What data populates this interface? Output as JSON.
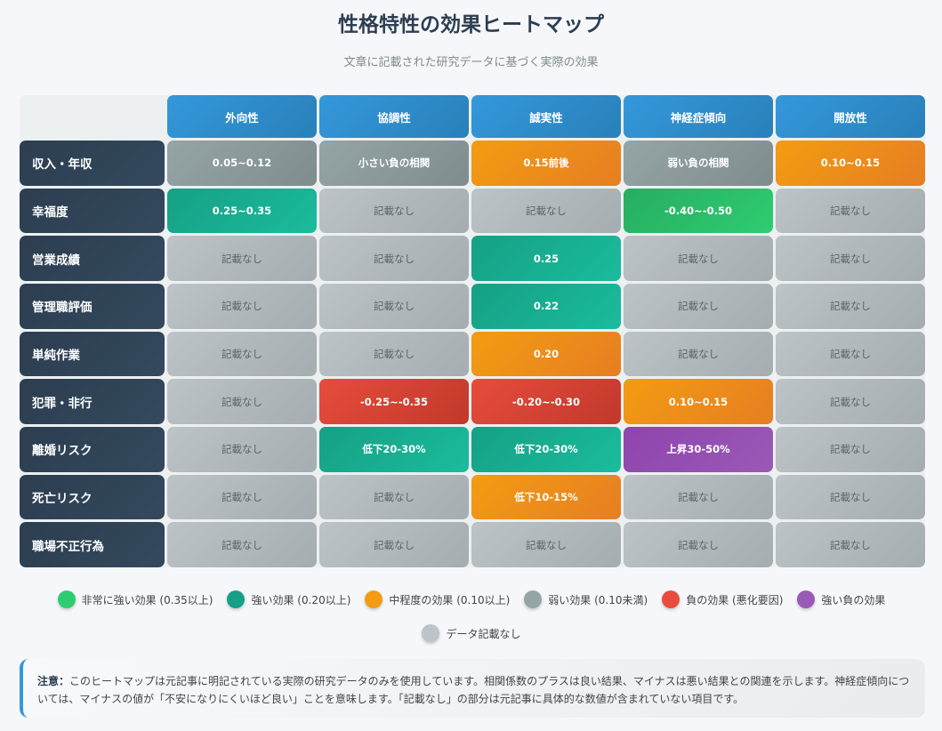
{
  "title": "性格特性の効果ヒートマップ",
  "subtitle": "文章に記載された研究データに基づく実際の効果",
  "columns": [
    "外向性",
    "協調性",
    "誠実性",
    "神経症傾向",
    "開放性"
  ],
  "rows": [
    {
      "label": "収入・年収",
      "cells": [
        [
          "0.05~0.12",
          "weak"
        ],
        [
          "小さい負の相関",
          "weak"
        ],
        [
          "0.15前後",
          "mid"
        ],
        [
          "弱い負の相関",
          "weak"
        ],
        [
          "0.10~0.15",
          "mid"
        ]
      ]
    },
    {
      "label": "幸福度",
      "cells": [
        [
          "0.25~0.35",
          "strong"
        ],
        [
          "記載なし",
          "none"
        ],
        [
          "記載なし",
          "none"
        ],
        [
          "-0.40~-0.50",
          "vstrong"
        ],
        [
          "記載なし",
          "none"
        ]
      ]
    },
    {
      "label": "営業成績",
      "cells": [
        [
          "記載なし",
          "none"
        ],
        [
          "記載なし",
          "none"
        ],
        [
          "0.25",
          "strong"
        ],
        [
          "記載なし",
          "none"
        ],
        [
          "記載なし",
          "none"
        ]
      ]
    },
    {
      "label": "管理職評価",
      "cells": [
        [
          "記載なし",
          "none"
        ],
        [
          "記載なし",
          "none"
        ],
        [
          "0.22",
          "strong"
        ],
        [
          "記載なし",
          "none"
        ],
        [
          "記載なし",
          "none"
        ]
      ]
    },
    {
      "label": "単純作業",
      "cells": [
        [
          "記載なし",
          "none"
        ],
        [
          "記載なし",
          "none"
        ],
        [
          "0.20",
          "mid"
        ],
        [
          "記載なし",
          "none"
        ],
        [
          "記載なし",
          "none"
        ]
      ]
    },
    {
      "label": "犯罪・非行",
      "cells": [
        [
          "記載なし",
          "none"
        ],
        [
          "-0.25~-0.35",
          "neg"
        ],
        [
          "-0.20~-0.30",
          "neg"
        ],
        [
          "0.10~0.15",
          "mid"
        ],
        [
          "記載なし",
          "none"
        ]
      ]
    },
    {
      "label": "離婚リスク",
      "cells": [
        [
          "記載なし",
          "none"
        ],
        [
          "低下20-30%",
          "strong"
        ],
        [
          "低下20-30%",
          "strong"
        ],
        [
          "上昇30-50%",
          "sneg"
        ],
        [
          "記載なし",
          "none"
        ]
      ]
    },
    {
      "label": "死亡リスク",
      "cells": [
        [
          "記載なし",
          "none"
        ],
        [
          "記載なし",
          "none"
        ],
        [
          "低下10-15%",
          "mid"
        ],
        [
          "記載なし",
          "none"
        ],
        [
          "記載なし",
          "none"
        ]
      ]
    },
    {
      "label": "職場不正行為",
      "cells": [
        [
          "記載なし",
          "none"
        ],
        [
          "記載なし",
          "none"
        ],
        [
          "記載なし",
          "none"
        ],
        [
          "記載なし",
          "none"
        ],
        [
          "記載なし",
          "none"
        ]
      ]
    }
  ],
  "legend": [
    {
      "label": "非常に強い効果 (0.35以上)",
      "color": "#2ecc71"
    },
    {
      "label": "強い効果 (0.20以上)",
      "color": "#16a085"
    },
    {
      "label": "中程度の効果 (0.10以上)",
      "color": "#f39c12"
    },
    {
      "label": "弱い効果 (0.10未満)",
      "color": "#95a5a6"
    },
    {
      "label": "負の効果 (悪化要因)",
      "color": "#e74c3c"
    },
    {
      "label": "強い負の効果",
      "color": "#9b59b6"
    },
    {
      "label": "データ記載なし",
      "color": "#bdc3c7"
    }
  ],
  "note": {
    "label": "注意：",
    "text": "このヒートマップは元記事に明記されている実際の研究データのみを使用しています。相関係数のプラスは良い結果、マイナスは悪い結果との関連を示します。神経症傾向については、マイナスの値が「不安になりにくいほど良い」ことを意味します。「記載なし」の部分は元記事に具体的な数値が含まれていない項目です。"
  }
}
